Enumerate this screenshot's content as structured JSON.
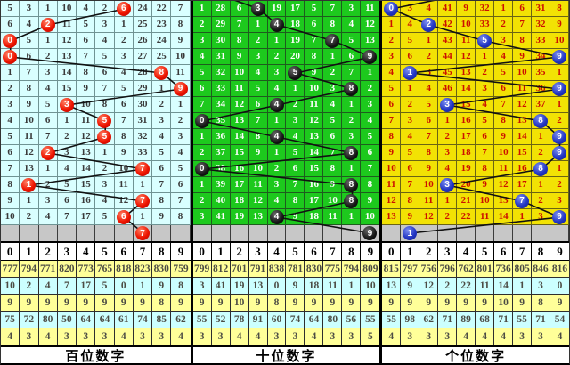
{
  "chart_data": {
    "type": "table",
    "title": "3D lottery digit trend chart (miss counts with drawn-digit circles)",
    "digits_header": [
      "0",
      "1",
      "2",
      "3",
      "4",
      "5",
      "6",
      "7",
      "8",
      "9"
    ],
    "stats_row_bgs": [
      "#ffff99",
      "#ccffff",
      "#ffff99",
      "#ccffff",
      "#ffff99"
    ],
    "line_color": "#111111",
    "panels": [
      {
        "name": "hundreds",
        "label": "百位数字",
        "bg": "#d9ffff",
        "text_color": "#3a3a3a",
        "grid_color": "#6f9393",
        "circle_style": "red",
        "circle_color": "#ee1500",
        "entry_col": null,
        "rows": [
          [
            "5",
            "3",
            "1",
            "10",
            "4",
            "2",
            "6",
            "24",
            "22",
            "7"
          ],
          [
            "6",
            "4",
            "2",
            "11",
            "5",
            "3",
            "1",
            "25",
            "23",
            "8"
          ],
          [
            "0",
            "5",
            "1",
            "12",
            "6",
            "4",
            "2",
            "26",
            "24",
            "9"
          ],
          [
            "0",
            "6",
            "2",
            "13",
            "7",
            "5",
            "3",
            "27",
            "25",
            "10"
          ],
          [
            "1",
            "7",
            "3",
            "14",
            "8",
            "6",
            "4",
            "28",
            "8",
            "11"
          ],
          [
            "2",
            "8",
            "4",
            "15",
            "9",
            "7",
            "5",
            "29",
            "1",
            "9"
          ],
          [
            "3",
            "9",
            "5",
            "3",
            "10",
            "8",
            "6",
            "30",
            "2",
            "1"
          ],
          [
            "4",
            "10",
            "6",
            "1",
            "11",
            "5",
            "7",
            "31",
            "3",
            "2"
          ],
          [
            "5",
            "11",
            "7",
            "2",
            "12",
            "5",
            "8",
            "32",
            "4",
            "3"
          ],
          [
            "6",
            "12",
            "2",
            "3",
            "13",
            "1",
            "9",
            "33",
            "5",
            "4"
          ],
          [
            "7",
            "13",
            "1",
            "4",
            "14",
            "2",
            "10",
            "7",
            "6",
            "5"
          ],
          [
            "8",
            "1",
            "2",
            "5",
            "15",
            "3",
            "11",
            "1",
            "7",
            "6"
          ],
          [
            "9",
            "1",
            "3",
            "6",
            "16",
            "4",
            "12",
            "7",
            "8",
            "7"
          ],
          [
            "10",
            "2",
            "4",
            "7",
            "17",
            "5",
            "6",
            "1",
            "9",
            "8"
          ]
        ],
        "circles": [
          {
            "row": 0,
            "col": 6,
            "digit": "6"
          },
          {
            "row": 1,
            "col": 2,
            "digit": "2"
          },
          {
            "row": 2,
            "col": 0,
            "digit": "0"
          },
          {
            "row": 3,
            "col": 0,
            "digit": "0"
          },
          {
            "row": 4,
            "col": 8,
            "digit": "8"
          },
          {
            "row": 5,
            "col": 9,
            "digit": "9"
          },
          {
            "row": 6,
            "col": 3,
            "digit": "3"
          },
          {
            "row": 7,
            "col": 5,
            "digit": "5"
          },
          {
            "row": 8,
            "col": 5,
            "digit": "5"
          },
          {
            "row": 9,
            "col": 2,
            "digit": "2"
          },
          {
            "row": 10,
            "col": 7,
            "digit": "7"
          },
          {
            "row": 11,
            "col": 1,
            "digit": "1"
          },
          {
            "row": 12,
            "col": 7,
            "digit": "7"
          },
          {
            "row": 13,
            "col": 6,
            "digit": "6"
          }
        ],
        "tail_circle": {
          "col": 7,
          "digit": "7"
        },
        "stats_rows": [
          [
            "777",
            "794",
            "771",
            "820",
            "773",
            "765",
            "818",
            "823",
            "830",
            "759"
          ],
          [
            "10",
            "2",
            "4",
            "7",
            "17",
            "5",
            "0",
            "1",
            "9",
            "8"
          ],
          [
            "9",
            "9",
            "9",
            "9",
            "9",
            "9",
            "9",
            "9",
            "8",
            "9"
          ],
          [
            "75",
            "72",
            "80",
            "50",
            "64",
            "64",
            "61",
            "74",
            "85",
            "62"
          ],
          [
            "4",
            "3",
            "4",
            "3",
            "3",
            "3",
            "4",
            "3",
            "3",
            "4"
          ]
        ]
      },
      {
        "name": "tens",
        "label": "十位数字",
        "bg": "#1dc91d",
        "text_color": "#ffffff",
        "grid_color": "#1e5c1e",
        "circle_style": "black",
        "circle_color": "#000000",
        "entry_col": 0.5,
        "rows": [
          [
            "1",
            "28",
            "6",
            "3",
            "19",
            "17",
            "5",
            "7",
            "3",
            "11"
          ],
          [
            "2",
            "29",
            "7",
            "1",
            "4",
            "18",
            "6",
            "8",
            "4",
            "12"
          ],
          [
            "3",
            "30",
            "8",
            "2",
            "1",
            "19",
            "7",
            "7",
            "5",
            "13"
          ],
          [
            "4",
            "31",
            "9",
            "3",
            "2",
            "20",
            "8",
            "1",
            "6",
            "9"
          ],
          [
            "5",
            "32",
            "10",
            "4",
            "3",
            "5",
            "9",
            "2",
            "7",
            "1"
          ],
          [
            "6",
            "33",
            "11",
            "5",
            "4",
            "1",
            "10",
            "3",
            "8",
            "2"
          ],
          [
            "7",
            "34",
            "12",
            "6",
            "4",
            "2",
            "11",
            "4",
            "1",
            "3"
          ],
          [
            "0",
            "35",
            "13",
            "7",
            "1",
            "3",
            "12",
            "5",
            "2",
            "4"
          ],
          [
            "1",
            "36",
            "14",
            "8",
            "4",
            "4",
            "13",
            "6",
            "3",
            "5"
          ],
          [
            "2",
            "37",
            "15",
            "9",
            "1",
            "5",
            "14",
            "7",
            "8",
            "6"
          ],
          [
            "0",
            "38",
            "16",
            "10",
            "2",
            "6",
            "15",
            "8",
            "1",
            "7"
          ],
          [
            "1",
            "39",
            "17",
            "11",
            "3",
            "7",
            "16",
            "9",
            "8",
            "8"
          ],
          [
            "2",
            "40",
            "18",
            "12",
            "4",
            "8",
            "17",
            "10",
            "8",
            "9"
          ],
          [
            "3",
            "41",
            "19",
            "13",
            "4",
            "9",
            "18",
            "11",
            "1",
            "10"
          ]
        ],
        "circles": [
          {
            "row": 0,
            "col": 3,
            "digit": "3"
          },
          {
            "row": 1,
            "col": 4,
            "digit": "4"
          },
          {
            "row": 2,
            "col": 7,
            "digit": "7"
          },
          {
            "row": 3,
            "col": 9,
            "digit": "9"
          },
          {
            "row": 4,
            "col": 5,
            "digit": "5"
          },
          {
            "row": 5,
            "col": 8,
            "digit": "8"
          },
          {
            "row": 6,
            "col": 4,
            "digit": "4"
          },
          {
            "row": 7,
            "col": 0,
            "digit": "0"
          },
          {
            "row": 8,
            "col": 4,
            "digit": "4"
          },
          {
            "row": 9,
            "col": 8,
            "digit": "8"
          },
          {
            "row": 10,
            "col": 0,
            "digit": "0"
          },
          {
            "row": 11,
            "col": 8,
            "digit": "8"
          },
          {
            "row": 12,
            "col": 8,
            "digit": "8"
          },
          {
            "row": 13,
            "col": 4,
            "digit": "4"
          }
        ],
        "tail_circle": {
          "col": 9,
          "digit": "9"
        },
        "stats_rows": [
          [
            "799",
            "812",
            "701",
            "791",
            "838",
            "781",
            "830",
            "775",
            "794",
            "809"
          ],
          [
            "3",
            "41",
            "19",
            "13",
            "0",
            "9",
            "18",
            "11",
            "1",
            "10"
          ],
          [
            "9",
            "9",
            "10",
            "9",
            "8",
            "9",
            "9",
            "9",
            "9",
            "9"
          ],
          [
            "55",
            "52",
            "78",
            "91",
            "60",
            "74",
            "64",
            "80",
            "56",
            "55"
          ],
          [
            "3",
            "3",
            "4",
            "4",
            "3",
            "3",
            "4",
            "3",
            "3",
            "5"
          ]
        ]
      },
      {
        "name": "units",
        "label": "个位数字",
        "bg": "#f2e204",
        "text_color": "#cc1100",
        "grid_color": "#6b6414",
        "circle_style": "blue",
        "circle_color": "#2336c4",
        "entry_col": 4.5,
        "rows": [
          [
            "0",
            "3",
            "4",
            "41",
            "9",
            "32",
            "1",
            "6",
            "31",
            "8"
          ],
          [
            "1",
            "4",
            "2",
            "42",
            "10",
            "33",
            "2",
            "7",
            "32",
            "9"
          ],
          [
            "2",
            "5",
            "1",
            "43",
            "11",
            "5",
            "3",
            "8",
            "33",
            "10"
          ],
          [
            "3",
            "6",
            "2",
            "44",
            "12",
            "1",
            "4",
            "9",
            "34",
            "9"
          ],
          [
            "4",
            "1",
            "3",
            "45",
            "13",
            "2",
            "5",
            "10",
            "35",
            "1"
          ],
          [
            "5",
            "1",
            "4",
            "46",
            "14",
            "3",
            "6",
            "11",
            "36",
            "9"
          ],
          [
            "6",
            "2",
            "5",
            "3",
            "15",
            "4",
            "7",
            "12",
            "37",
            "1"
          ],
          [
            "7",
            "3",
            "6",
            "1",
            "16",
            "5",
            "8",
            "13",
            "8",
            "2"
          ],
          [
            "8",
            "4",
            "7",
            "2",
            "17",
            "6",
            "9",
            "14",
            "1",
            "9"
          ],
          [
            "9",
            "5",
            "8",
            "3",
            "18",
            "7",
            "10",
            "15",
            "2",
            "9"
          ],
          [
            "10",
            "6",
            "9",
            "4",
            "19",
            "8",
            "11",
            "16",
            "8",
            "1"
          ],
          [
            "11",
            "7",
            "10",
            "3",
            "20",
            "9",
            "12",
            "17",
            "1",
            "2"
          ],
          [
            "12",
            "8",
            "11",
            "1",
            "21",
            "10",
            "13",
            "7",
            "2",
            "3"
          ],
          [
            "13",
            "9",
            "12",
            "2",
            "22",
            "11",
            "14",
            "1",
            "3",
            "9"
          ]
        ],
        "circles": [
          {
            "row": 0,
            "col": 0,
            "digit": "0"
          },
          {
            "row": 1,
            "col": 2,
            "digit": "2"
          },
          {
            "row": 2,
            "col": 5,
            "digit": "5"
          },
          {
            "row": 3,
            "col": 9,
            "digit": "9"
          },
          {
            "row": 4,
            "col": 1,
            "digit": "1"
          },
          {
            "row": 5,
            "col": 9,
            "digit": "9"
          },
          {
            "row": 6,
            "col": 3,
            "digit": "3"
          },
          {
            "row": 7,
            "col": 8,
            "digit": "8"
          },
          {
            "row": 8,
            "col": 9,
            "digit": "9"
          },
          {
            "row": 9,
            "col": 9,
            "digit": "9"
          },
          {
            "row": 10,
            "col": 8,
            "digit": "8"
          },
          {
            "row": 11,
            "col": 3,
            "digit": "3"
          },
          {
            "row": 12,
            "col": 7,
            "digit": "7"
          },
          {
            "row": 13,
            "col": 9,
            "digit": "9"
          }
        ],
        "tail_circle": {
          "col": 1,
          "digit": "1"
        },
        "stats_rows": [
          [
            "815",
            "797",
            "756",
            "796",
            "762",
            "801",
            "736",
            "805",
            "846",
            "816"
          ],
          [
            "13",
            "9",
            "12",
            "2",
            "22",
            "11",
            "14",
            "1",
            "3",
            "0"
          ],
          [
            "9",
            "9",
            "9",
            "9",
            "9",
            "9",
            "10",
            "9",
            "8",
            "9"
          ],
          [
            "55",
            "98",
            "62",
            "71",
            "89",
            "68",
            "71",
            "55",
            "71",
            "54"
          ],
          [
            "4",
            "3",
            "3",
            "3",
            "4",
            "4",
            "4",
            "3",
            "3",
            "4"
          ]
        ]
      }
    ]
  }
}
